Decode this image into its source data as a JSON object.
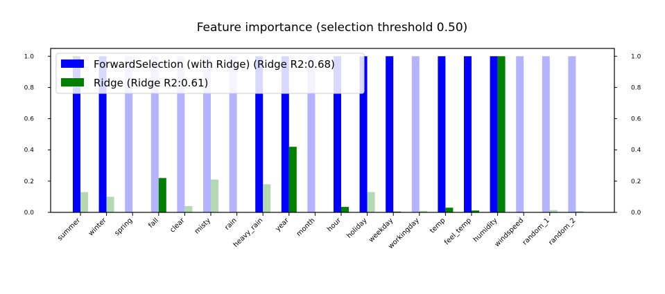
{
  "chart_data": {
    "type": "bar",
    "title": "Feature importance (selection threshold 0.50)",
    "xlabel": "",
    "ylabel": "",
    "ylim": [
      0,
      1.05
    ],
    "yticks": [
      "0.0",
      "0.2",
      "0.4",
      "0.6",
      "0.8",
      "1.0"
    ],
    "ytick_values": [
      0.0,
      0.2,
      0.4,
      0.6,
      0.8,
      1.0
    ],
    "legend_position": "top-left",
    "categories": [
      "summer",
      "winter",
      "spring",
      "fall",
      "clear",
      "misty",
      "rain",
      "heavy_rain",
      "year",
      "month",
      "hour",
      "holiday",
      "weekday",
      "workingday",
      "temp",
      "feel_temp",
      "humidity",
      "windspeed",
      "random_1",
      "random_2"
    ],
    "series": [
      {
        "name": "ForwardSelection (with Ridge) (Ridge R2:0.68)",
        "color": "#0000ff",
        "faded_color": "#b3b3ff",
        "values": [
          1.0,
          1.0,
          1.0,
          1.0,
          1.0,
          1.0,
          1.0,
          1.0,
          1.0,
          1.0,
          1.0,
          1.0,
          1.0,
          1.0,
          1.0,
          1.0,
          1.0,
          1.0,
          1.0,
          1.0
        ],
        "selected": [
          true,
          true,
          false,
          false,
          false,
          false,
          false,
          true,
          true,
          false,
          true,
          true,
          true,
          false,
          true,
          true,
          true,
          false,
          false,
          false
        ]
      },
      {
        "name": "Ridge (Ridge R2:0.61)",
        "color": "#008000",
        "faded_color": "#b3d9b3",
        "values": [
          0.13,
          0.1,
          0.0,
          0.22,
          0.04,
          0.21,
          0.0,
          0.18,
          0.42,
          0.0,
          0.035,
          0.13,
          0.005,
          0.01,
          0.03,
          0.012,
          1.0,
          0.0,
          0.015,
          0.008
        ],
        "selected": [
          false,
          false,
          false,
          true,
          false,
          false,
          false,
          false,
          true,
          false,
          true,
          false,
          true,
          false,
          true,
          true,
          true,
          false,
          false,
          false
        ]
      }
    ]
  }
}
